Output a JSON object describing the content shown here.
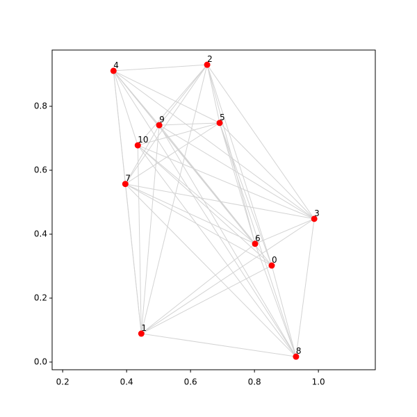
{
  "chart_data": {
    "type": "network",
    "nodes": [
      {
        "label": "0",
        "x": 0.854,
        "y": 0.302
      },
      {
        "label": "1",
        "x": 0.446,
        "y": 0.089
      },
      {
        "label": "2",
        "x": 0.652,
        "y": 0.93
      },
      {
        "label": "3",
        "x": 0.987,
        "y": 0.448
      },
      {
        "label": "4",
        "x": 0.359,
        "y": 0.911
      },
      {
        "label": "5",
        "x": 0.691,
        "y": 0.748
      },
      {
        "label": "6",
        "x": 0.802,
        "y": 0.37
      },
      {
        "label": "7",
        "x": 0.396,
        "y": 0.557
      },
      {
        "label": "8",
        "x": 0.93,
        "y": 0.017
      },
      {
        "label": "9",
        "x": 0.502,
        "y": 0.741
      },
      {
        "label": "10",
        "x": 0.435,
        "y": 0.678
      }
    ],
    "edges": [
      [
        4,
        2
      ],
      [
        4,
        5
      ],
      [
        4,
        3
      ],
      [
        4,
        6
      ],
      [
        4,
        0
      ],
      [
        4,
        8
      ],
      [
        4,
        1
      ],
      [
        4,
        7
      ],
      [
        4,
        10
      ],
      [
        4,
        9
      ],
      [
        2,
        9
      ],
      [
        2,
        10
      ],
      [
        2,
        7
      ],
      [
        2,
        5
      ],
      [
        2,
        6
      ],
      [
        2,
        0
      ],
      [
        2,
        3
      ],
      [
        2,
        1
      ],
      [
        5,
        9
      ],
      [
        5,
        10
      ],
      [
        5,
        7
      ],
      [
        5,
        6
      ],
      [
        5,
        8
      ],
      [
        5,
        3
      ],
      [
        5,
        0
      ],
      [
        9,
        6
      ],
      [
        9,
        3
      ],
      [
        9,
        8
      ],
      [
        9,
        1
      ],
      [
        9,
        7
      ],
      [
        10,
        6
      ],
      [
        10,
        0
      ],
      [
        10,
        8
      ],
      [
        10,
        3
      ],
      [
        10,
        1
      ],
      [
        7,
        3
      ],
      [
        7,
        6
      ],
      [
        7,
        0
      ],
      [
        7,
        8
      ],
      [
        7,
        1
      ],
      [
        3,
        6
      ],
      [
        3,
        8
      ],
      [
        3,
        1
      ],
      [
        1,
        6
      ],
      [
        1,
        0
      ],
      [
        1,
        8
      ],
      [
        0,
        8
      ],
      [
        6,
        8
      ]
    ],
    "node_color": "#ff0000",
    "edge_color": "#d3d3d3",
    "xlim": [
      0.167,
      1.178
    ],
    "ylim": [
      -0.024,
      0.976
    ],
    "xticks": [
      0.2,
      0.4,
      0.6,
      0.8,
      {
        "value": 1,
        "label": "1.0"
      }
    ],
    "yticks": [
      {
        "value": 0,
        "label": "0.0"
      },
      0.2,
      0.4,
      0.6,
      0.8
    ]
  }
}
